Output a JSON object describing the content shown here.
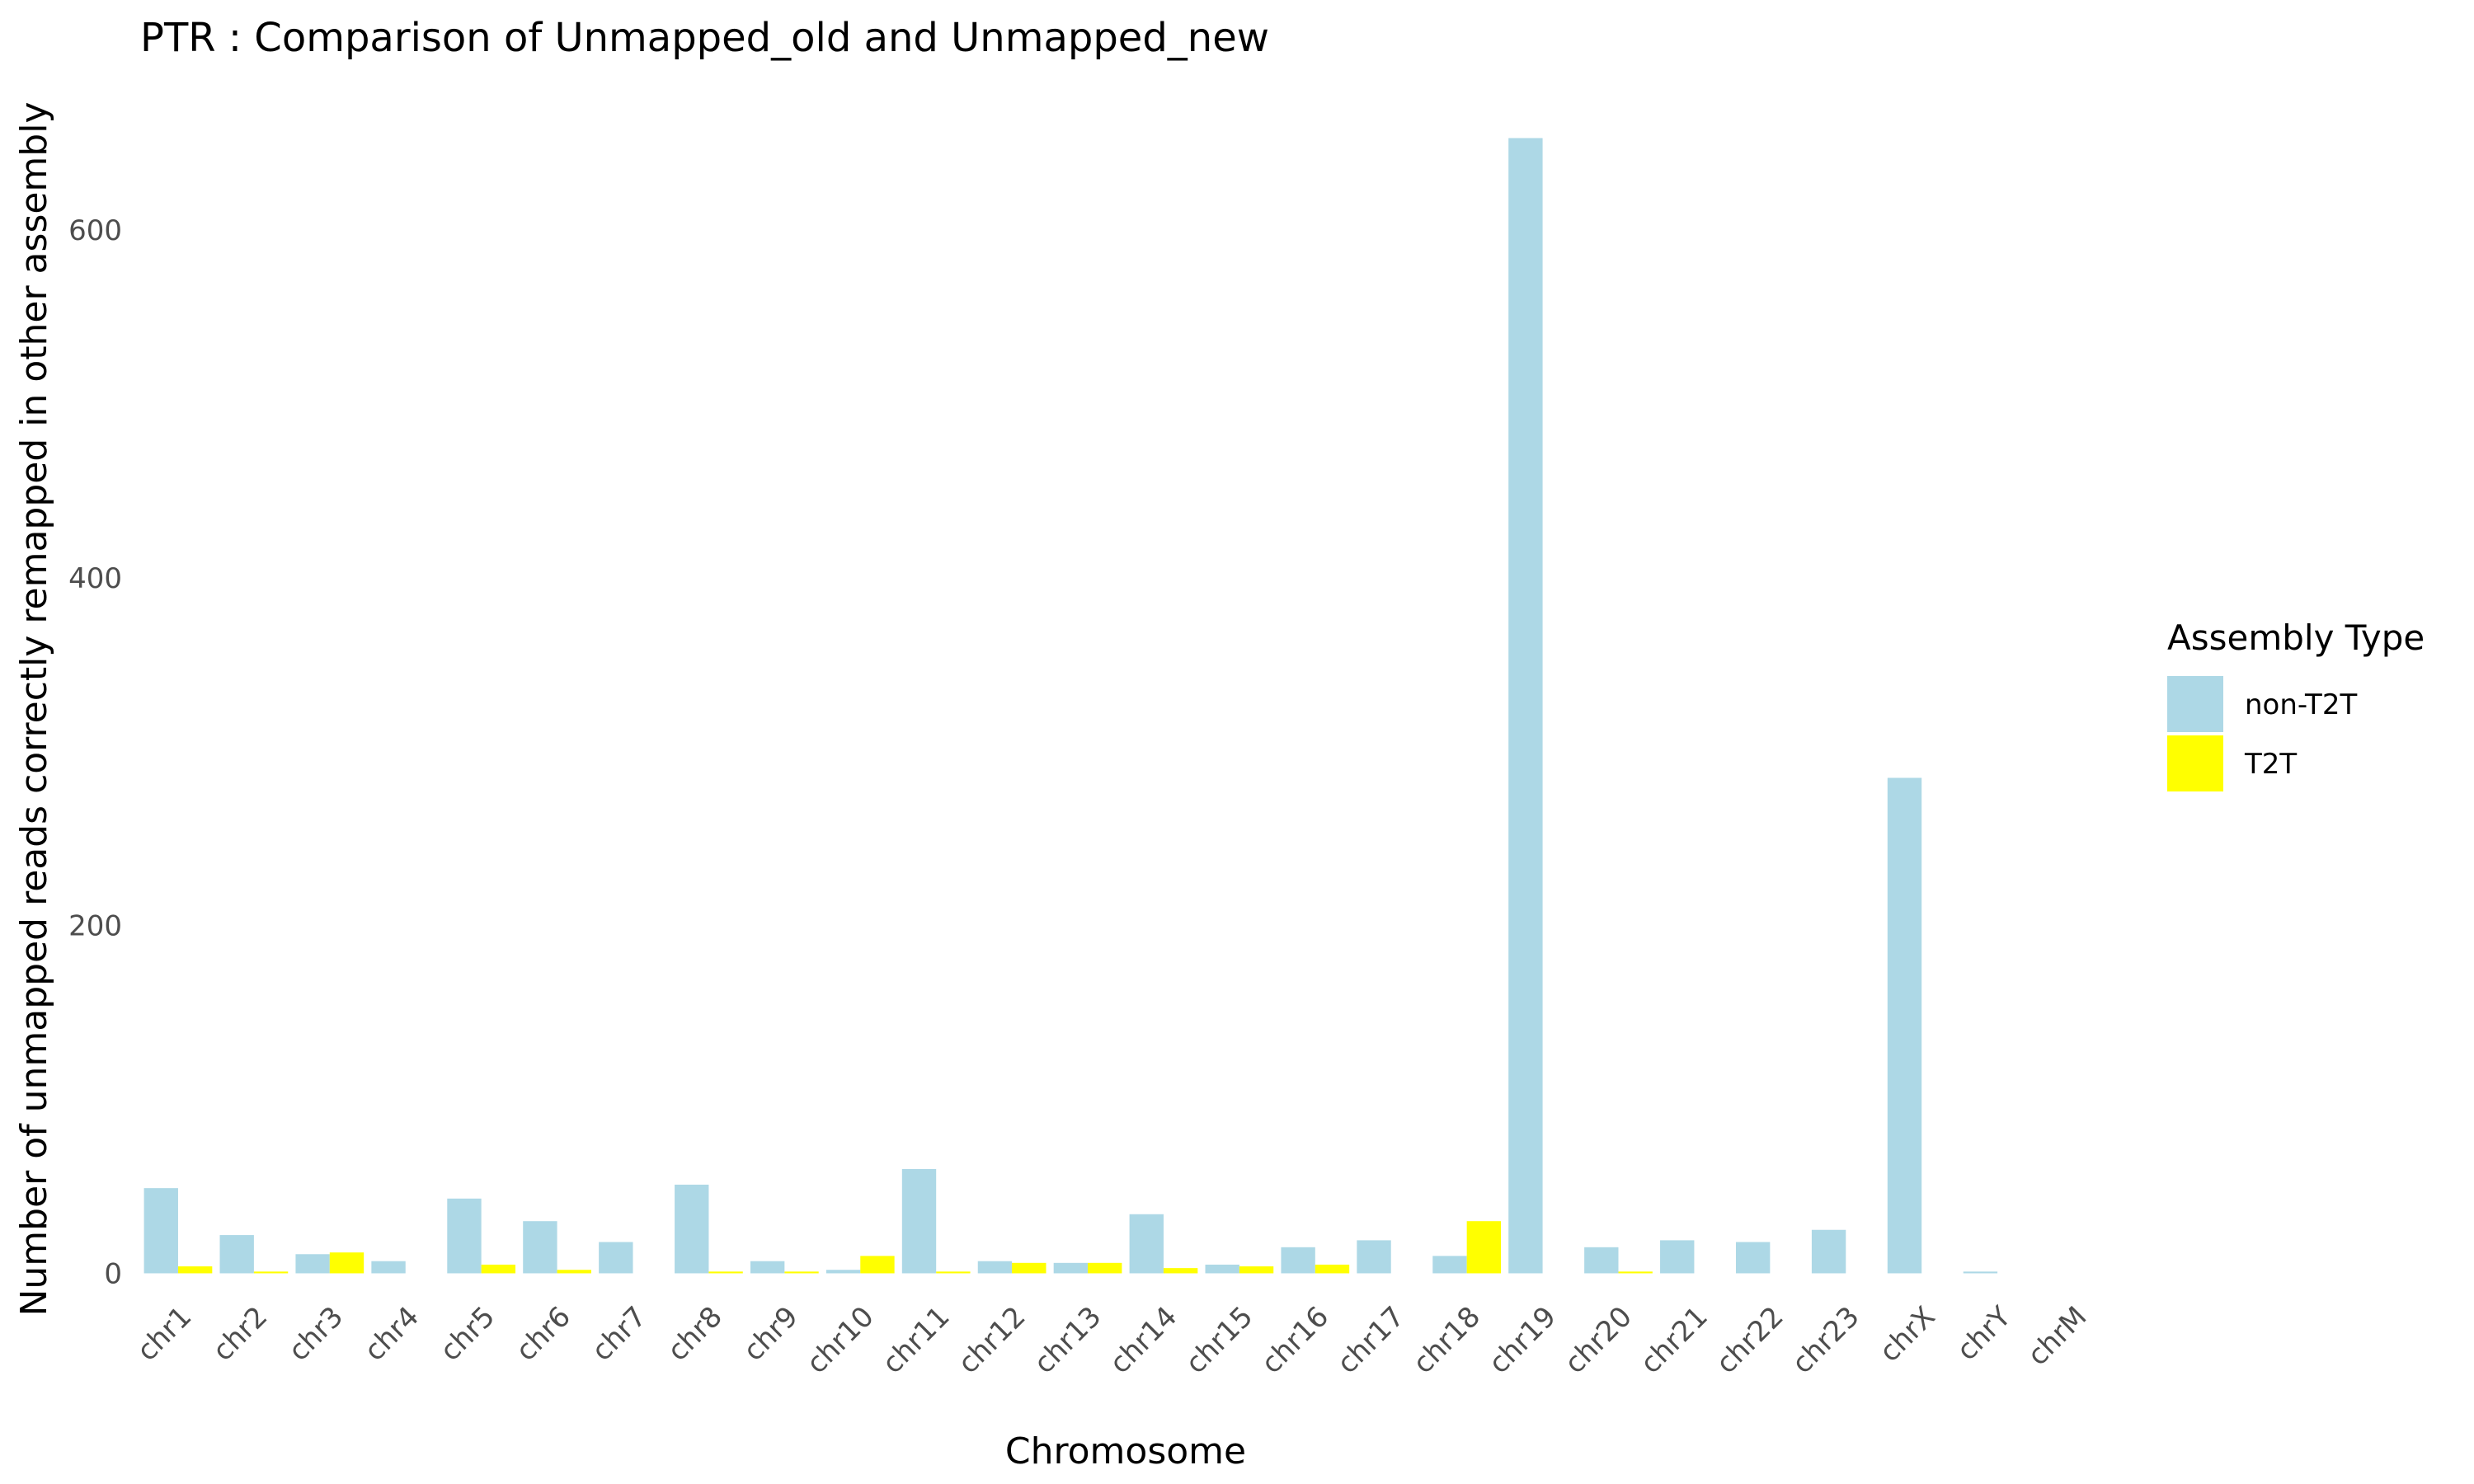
{
  "chart_data": {
    "type": "bar",
    "title": "PTR : Comparison of Unmapped_old and Unmapped_new",
    "xlabel": "Chromosome",
    "ylabel": "Number of unmapped reads correctly remapped in other assembly",
    "categories": [
      "chr1",
      "chr2",
      "chr3",
      "chr4",
      "chr5",
      "chr6",
      "chr7",
      "chr8",
      "chr9",
      "chr10",
      "chr11",
      "chr12",
      "chr13",
      "chr14",
      "chr15",
      "chr16",
      "chr17",
      "chr18",
      "chr19",
      "chr20",
      "chr21",
      "chr22",
      "chr23",
      "chrX",
      "chrY",
      "chrM"
    ],
    "series": [
      {
        "name": "non-T2T",
        "color": "#ADD8E6",
        "values": [
          49,
          22,
          11,
          7,
          43,
          30,
          18,
          51,
          7,
          2,
          60,
          7,
          6,
          34,
          5,
          15,
          19,
          10,
          653,
          15,
          19,
          18,
          25,
          285,
          1,
          0
        ]
      },
      {
        "name": "T2T",
        "color": "#FFFF00",
        "values": [
          4,
          1,
          12,
          0,
          5,
          2,
          0,
          1,
          1,
          10,
          1,
          6,
          6,
          3,
          4,
          5,
          0,
          30,
          0,
          1,
          0,
          0,
          0,
          0,
          0,
          0
        ]
      }
    ],
    "yticks": [
      0,
      200,
      400,
      600
    ],
    "ylim": [
      -5,
      685
    ],
    "grid": false,
    "legend": {
      "title": "Assembly Type",
      "position": "right"
    }
  }
}
